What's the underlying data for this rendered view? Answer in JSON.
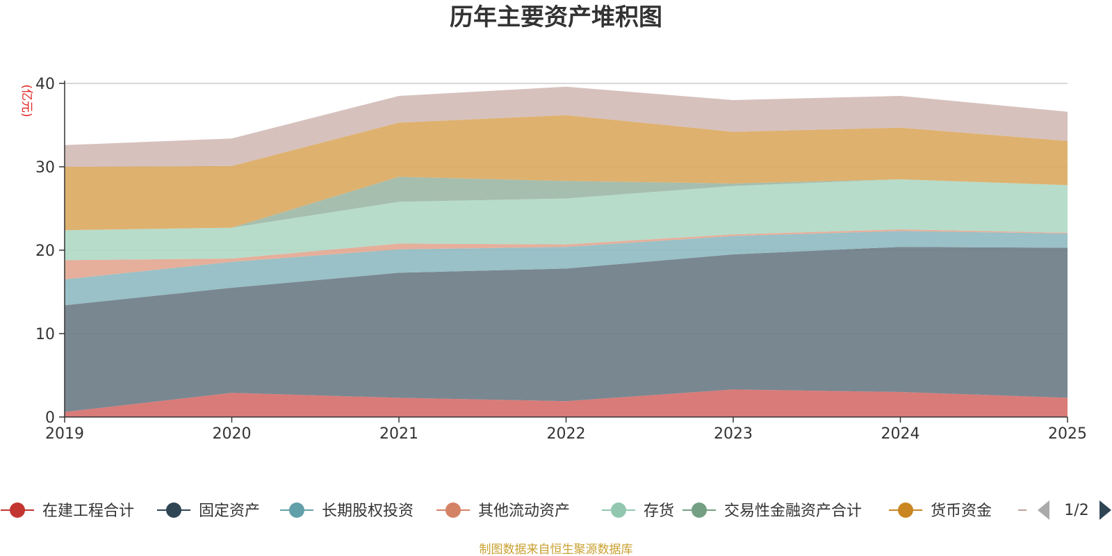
{
  "chart_data": {
    "type": "area",
    "stacked": true,
    "title": "历年主要资产堆积图",
    "ylabel": "(亿元)",
    "xlabel": "",
    "x": [
      "2019",
      "2020",
      "2021",
      "2022",
      "2023",
      "2024",
      "2025"
    ],
    "ylim": [
      0,
      40
    ],
    "yticks": [
      0,
      10,
      20,
      30,
      40
    ],
    "grid": true,
    "series": [
      {
        "name": "在建工程合计",
        "color": "#c23531",
        "fill": "#d6706c",
        "values": [
          0.6,
          2.9,
          2.3,
          1.9,
          3.3,
          3.0,
          2.3
        ]
      },
      {
        "name": "固定资产",
        "color": "#2f4554",
        "fill": "#6e7d88",
        "values": [
          12.8,
          12.6,
          15.0,
          15.9,
          16.2,
          17.4,
          18.0
        ]
      },
      {
        "name": "长期股权投资",
        "color": "#61a0a8",
        "fill": "#90bcc2",
        "values": [
          3.1,
          3.1,
          2.8,
          2.6,
          2.2,
          1.9,
          1.7
        ]
      },
      {
        "name": "其他流动资产",
        "color": "#d48265",
        "fill": "#e3a893",
        "values": [
          2.3,
          0.4,
          0.7,
          0.3,
          0.2,
          0.2,
          0.1
        ]
      },
      {
        "name": "存货",
        "color": "#91c7ae",
        "fill": "#b1d9c6",
        "values": [
          3.6,
          3.7,
          5.0,
          5.5,
          5.8,
          6.0,
          5.7
        ]
      },
      {
        "name": "交易性金融资产合计",
        "color": "#749f83",
        "fill": "#9eb9a6",
        "values": [
          0.0,
          0.0,
          3.0,
          2.1,
          0.3,
          0.0,
          0.0
        ]
      },
      {
        "name": "货币资金",
        "color": "#ca8622",
        "fill": "#dbaa63",
        "values": [
          7.6,
          7.4,
          6.5,
          7.9,
          6.2,
          6.2,
          5.3
        ]
      },
      {
        "name": "",
        "color": "#bda29a",
        "fill": "#d2bcb7",
        "values": [
          2.6,
          3.3,
          3.2,
          3.4,
          3.8,
          3.8,
          3.5
        ]
      }
    ],
    "legend": {
      "position": "bottom",
      "page": "1/2"
    },
    "footer": "制图数据来自恒生聚源数据库"
  }
}
